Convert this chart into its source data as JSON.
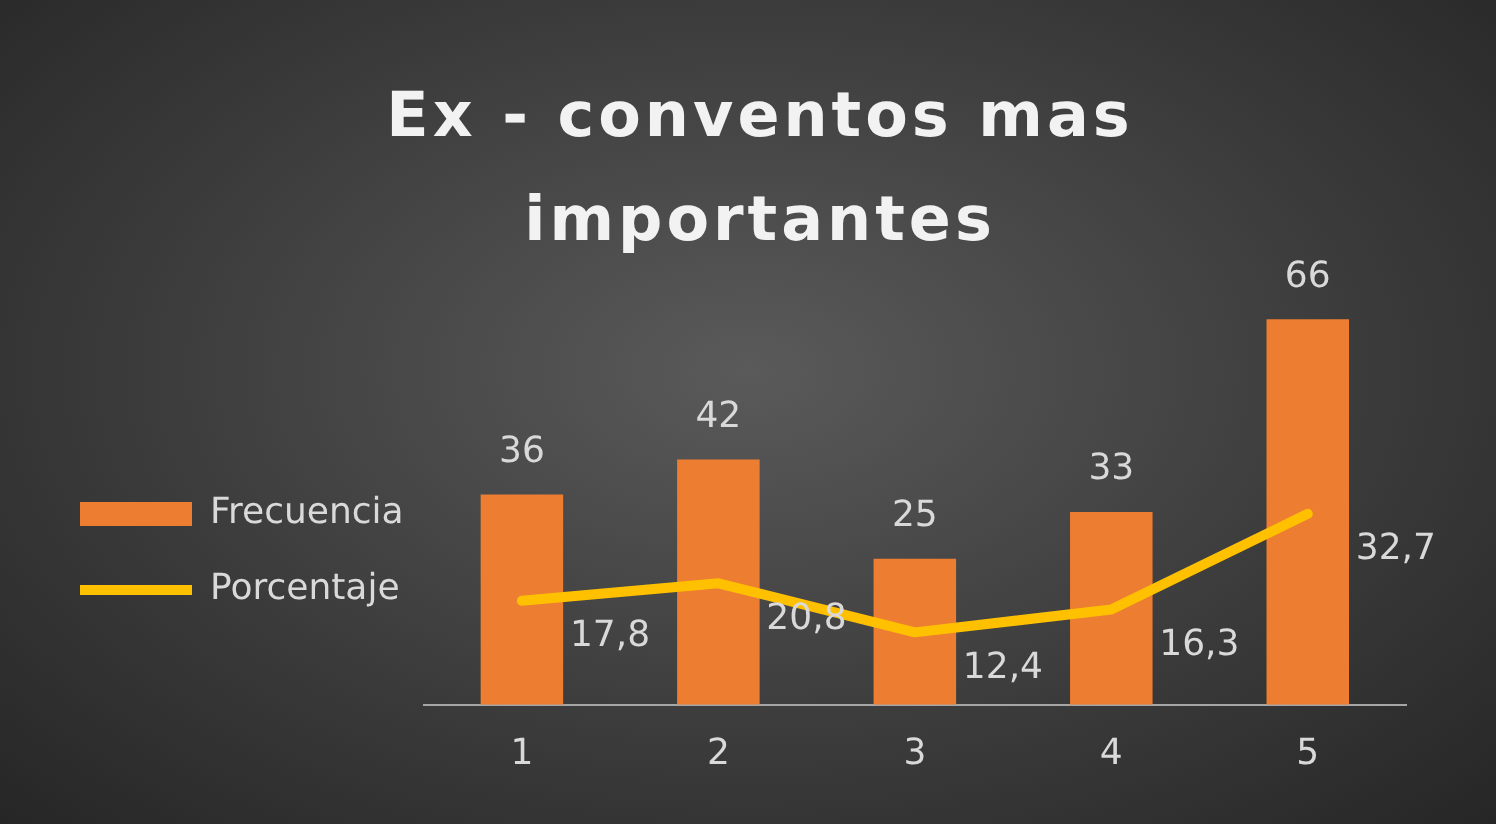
{
  "chart_data": {
    "type": "bar",
    "title": "Ex - conventos mas importantes",
    "categories": [
      "1",
      "2",
      "3",
      "4",
      "5"
    ],
    "series": [
      {
        "name": "Frecuencia",
        "color": "#ed7d31",
        "values": [
          36,
          42,
          25,
          33,
          66
        ],
        "value_labels": [
          "36",
          "42",
          "25",
          "33",
          "66"
        ]
      },
      {
        "name": "Porcentaje",
        "type": "line",
        "color": "#ffc000",
        "values": [
          17.8,
          20.8,
          12.4,
          16.3,
          32.7
        ],
        "value_labels": [
          "17,8",
          "20,8",
          "12,4",
          "16,3",
          "32,7"
        ]
      }
    ],
    "legend": "left",
    "marker": "none",
    "line_style": "solid"
  }
}
